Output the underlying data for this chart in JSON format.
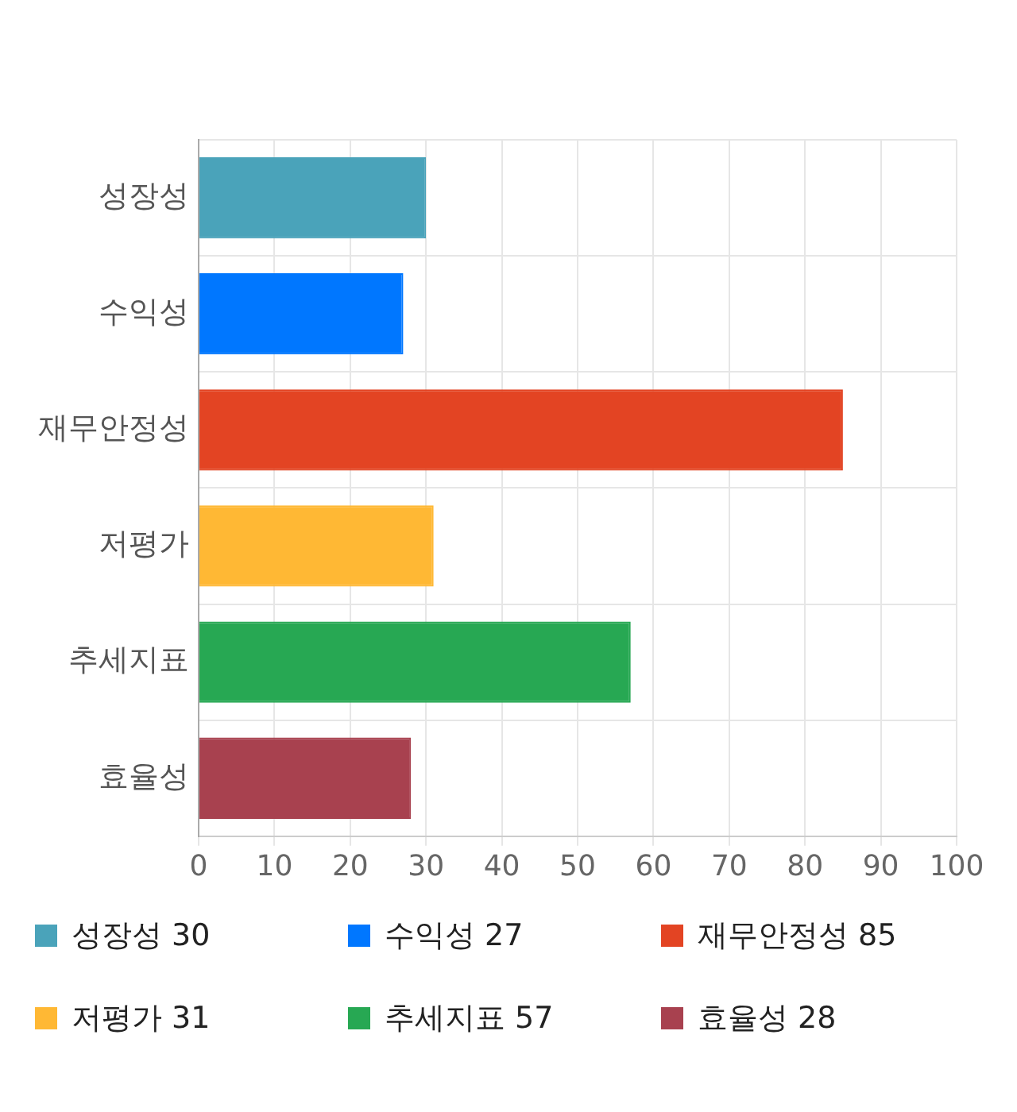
{
  "chart_data": {
    "type": "bar",
    "orientation": "horizontal",
    "categories": [
      "성장성",
      "수익성",
      "재무안정성",
      "저평가",
      "추세지표",
      "효율성"
    ],
    "values": [
      30,
      27,
      85,
      31,
      57,
      28
    ],
    "value_labels": [
      "30",
      "27",
      "85",
      "31",
      "57",
      "28"
    ],
    "colors": [
      "#4aa3ba",
      "#0077ff",
      "#e34423",
      "#ffb834",
      "#27a853",
      "#a8414f"
    ],
    "xlim": [
      0,
      100
    ],
    "xticks": [
      0,
      10,
      20,
      30,
      40,
      50,
      60,
      70,
      80,
      90,
      100
    ],
    "grid": true
  }
}
